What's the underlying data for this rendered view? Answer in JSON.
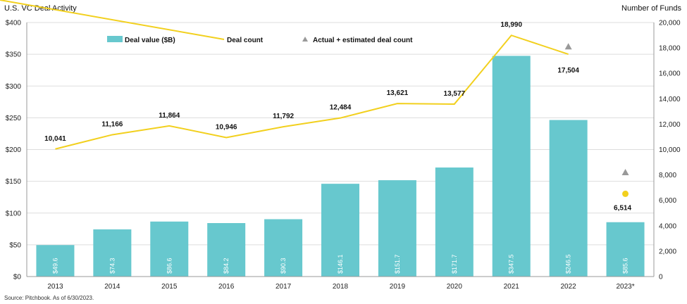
{
  "header": {
    "title": "U.S. VC Deal Activity",
    "right_axis_title": "Number of Funds"
  },
  "footer": {
    "source": "Source: Pitchbook. As of 6/30/2023."
  },
  "legend": {
    "deal_value": "Deal value ($B)",
    "deal_count": "Deal count",
    "estimated": "Actual + estimated deal count"
  },
  "colors": {
    "bars": "#67c8ce",
    "line": "#f2d01e",
    "triangle": "#999999",
    "grid": "#dddddd"
  },
  "chart_data": {
    "type": "bar",
    "title": "U.S. VC Deal Activity",
    "categories": [
      "2013",
      "2014",
      "2015",
      "2016",
      "2017",
      "2018",
      "2019",
      "2020",
      "2021",
      "2022",
      "2023*"
    ],
    "series": [
      {
        "name": "Deal value ($B)",
        "type": "bar",
        "axis": "left",
        "values": [
          49.6,
          74.3,
          86.6,
          84.2,
          90.3,
          146.1,
          151.7,
          171.7,
          347.5,
          246.5,
          85.6
        ],
        "labels": [
          "$49.6",
          "$74.3",
          "$86.6",
          "$84.2",
          "$90.3",
          "$146.1",
          "$151.7",
          "$171.7",
          "$347.5",
          "$246.5",
          "$85.6"
        ]
      },
      {
        "name": "Deal count",
        "type": "line",
        "axis": "right",
        "values": [
          10041,
          11166,
          11864,
          10946,
          11792,
          12484,
          13621,
          13577,
          18990,
          17504,
          null
        ],
        "labels": [
          "10,041",
          "11,166",
          "11,864",
          "10,946",
          "11,792",
          "12,484",
          "13,621",
          "13,577",
          "18,990",
          "17,504",
          ""
        ]
      },
      {
        "name": "Deal count 2023 (point)",
        "type": "point",
        "axis": "right",
        "category": "2023*",
        "value": 6514,
        "label": "6,514"
      },
      {
        "name": "Actual + estimated deal count",
        "type": "marker",
        "axis": "right",
        "points": [
          {
            "category": "2022",
            "value": 18100
          },
          {
            "category": "2023*",
            "value": 8200
          }
        ]
      }
    ],
    "ylim_left": [
      0,
      400
    ],
    "yticks_left": [
      "$0",
      "$50",
      "$100",
      "$150",
      "$200",
      "$250",
      "$300",
      "$350",
      "$400"
    ],
    "ylim_right": [
      0,
      20000
    ],
    "yticks_right": [
      "0",
      "2,000",
      "4,000",
      "6,000",
      "8,000",
      "10,000",
      "12,000",
      "14,000",
      "16,000",
      "18,000",
      "20,000"
    ],
    "grid": true,
    "legend_position": "top-left"
  }
}
